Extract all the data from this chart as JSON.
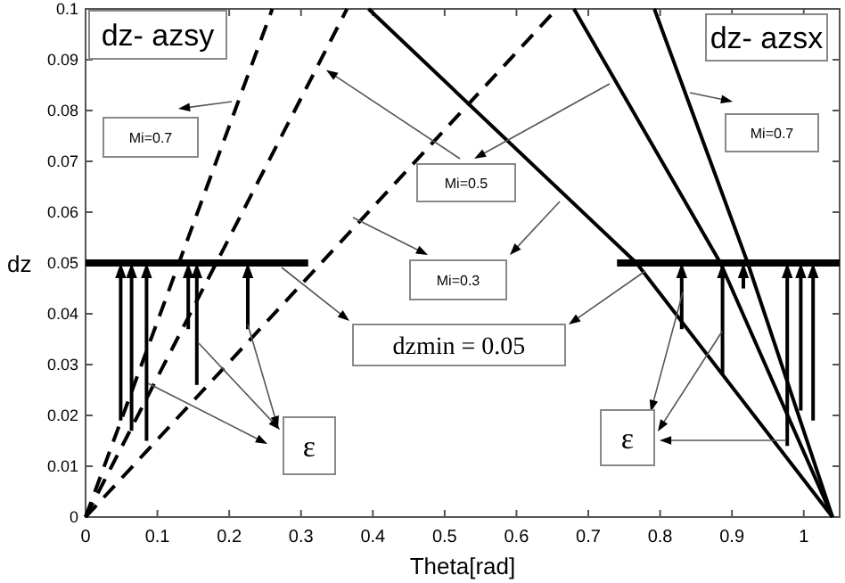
{
  "chart_data": {
    "type": "line",
    "xlabel": "Theta[rad]",
    "ylabel": "dz",
    "xlim": [
      0,
      1.05
    ],
    "ylim": [
      0,
      0.1
    ],
    "xticks": [
      0,
      0.1,
      0.2,
      0.3,
      0.4,
      0.5,
      0.6,
      0.7,
      0.8,
      0.9,
      1
    ],
    "yticks": [
      0,
      0.01,
      0.02,
      0.03,
      0.04,
      0.05,
      0.06,
      0.07,
      0.08,
      0.09,
      0.1
    ],
    "series": [
      {
        "color": "#000000",
        "line_style": "dashed",
        "x": [
          0,
          0.26
        ],
        "values": [
          0,
          0.1
        ]
      },
      {
        "color": "#000000",
        "line_style": "dashed",
        "x": [
          0,
          0.364
        ],
        "values": [
          0,
          0.1
        ]
      },
      {
        "color": "#000000",
        "line_style": "dashed",
        "x": [
          0,
          0.656
        ],
        "values": [
          0,
          0.1
        ]
      },
      {
        "color": "#000000",
        "line_style": "solid",
        "x": [
          0.394,
          0.767,
          1.04
        ],
        "values": [
          0.1,
          0.05,
          0
        ]
      },
      {
        "color": "#000000",
        "line_style": "solid",
        "x": [
          0.68,
          0.884,
          1.04
        ],
        "values": [
          0.1,
          0.05,
          0
        ]
      },
      {
        "color": "#000000",
        "line_style": "solid",
        "x": [
          0.792,
          0.922,
          1.04
        ],
        "values": [
          0.1,
          0.05,
          0
        ]
      },
      {
        "color": "#000000",
        "line_style": "solid",
        "x": [
          0,
          0.31
        ],
        "values": [
          0.05,
          0.05
        ]
      },
      {
        "color": "#000000",
        "line_style": "solid",
        "x": [
          0.74,
          1.05
        ],
        "values": [
          0.05,
          0.05
        ]
      }
    ],
    "annotations": [
      "dz- azsy",
      "Mi=0.7",
      {
        "text": "Mi=0.5",
        "x": 0.335,
        "y": 0.088
      },
      "Mi=0.3",
      "dzmin = 0.05",
      "ε",
      "dz- azsx",
      "Mi=0.7",
      "ε"
    ]
  }
}
